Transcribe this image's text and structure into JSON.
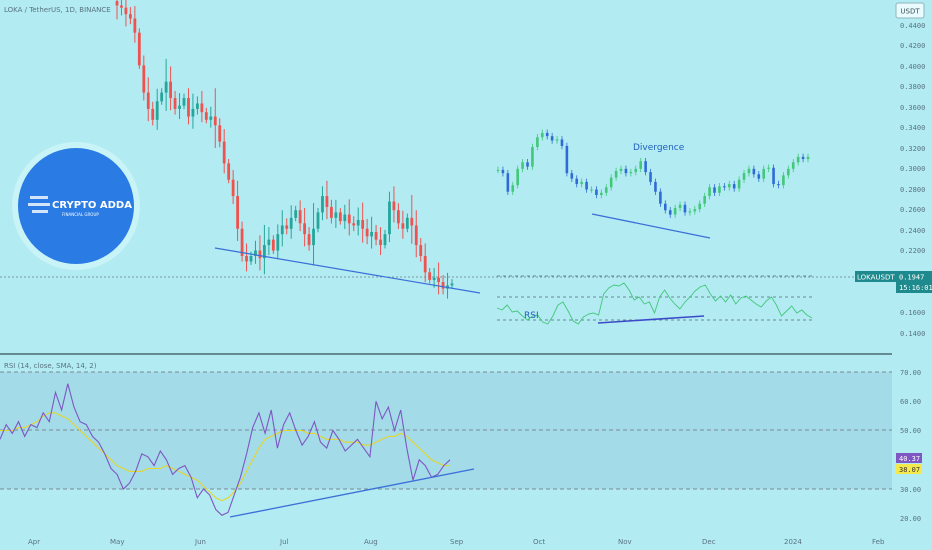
{
  "header": {
    "symbol_info": "LOKA / TetherUS, 1D, BINANCE",
    "currency_button": "USDT"
  },
  "price_axis": {
    "ticks": [
      "0.4400",
      "0.4200",
      "0.4000",
      "0.3800",
      "0.3600",
      "0.3400",
      "0.3200",
      "0.3000",
      "0.2800",
      "0.2600",
      "0.2400",
      "0.2200",
      "0.1600",
      "0.1400"
    ],
    "last_label": "LOKAUSDT",
    "last_price": "0.1947",
    "countdown": "15:16:01"
  },
  "rsi_axis": {
    "ticks": [
      "70.00",
      "60.00",
      "50.00",
      "30.00",
      "20.00"
    ],
    "rsi_value": "40.37",
    "ma_value": "38.07"
  },
  "rsi_pane": {
    "legend": "RSI (14, close, SMA, 14, 2)"
  },
  "time_axis": {
    "labels": [
      "Apr",
      "May",
      "Jun",
      "Jul",
      "Aug",
      "Sep",
      "Oct",
      "Nov",
      "Dec",
      "2024",
      "Feb"
    ]
  },
  "annotations": {
    "divergence": "Divergence",
    "rsi": "RSI",
    "logo_text": "CRYPTO ADDA",
    "logo_sub": "FINANCIAL GROUP"
  },
  "colors": {
    "background": "#b2ebf2",
    "up": "#26a69a",
    "down": "#ef5350",
    "rsi_line": "#7e57c2",
    "rsi_ma": "#e6d52a",
    "trendline": "#3b6fd8",
    "inset_green": "#43c77a",
    "inset_blue": "#2f6bd6",
    "logo_blue": "#2a7be4"
  },
  "chart_data": [
    {
      "type": "candlestick",
      "title": "LOKA / TetherUS, 1D, BINANCE",
      "ylim": [
        0.13,
        0.455
      ],
      "x_labels": [
        "Apr",
        "May",
        "Jun",
        "Jul",
        "Aug",
        "Sep"
      ],
      "close_series": [
        0.45,
        0.448,
        0.442,
        0.438,
        0.425,
        0.395,
        0.37,
        0.355,
        0.345,
        0.362,
        0.37,
        0.38,
        0.365,
        0.355,
        0.358,
        0.365,
        0.348,
        0.355,
        0.36,
        0.352,
        0.345,
        0.348,
        0.34,
        0.325,
        0.305,
        0.29,
        0.275,
        0.245,
        0.22,
        0.215,
        0.22,
        0.225,
        0.218,
        0.23,
        0.235,
        0.225,
        0.24,
        0.248,
        0.245,
        0.255,
        0.262,
        0.25,
        0.24,
        0.23,
        0.245,
        0.26,
        0.275,
        0.265,
        0.255,
        0.26,
        0.252,
        0.258,
        0.25,
        0.248,
        0.253,
        0.245,
        0.238,
        0.242,
        0.235,
        0.23,
        0.24,
        0.27,
        0.262,
        0.25,
        0.245,
        0.255,
        0.248,
        0.23,
        0.22,
        0.205,
        0.198,
        0.2,
        0.196,
        0.19,
        0.193,
        0.1947
      ],
      "last_price": 0.1947
    },
    {
      "type": "line",
      "title": "RSI (14, close, SMA, 14, 2)",
      "ylim": [
        18,
        72
      ],
      "guides": [
        70,
        50,
        30
      ],
      "series": [
        {
          "name": "RSI",
          "values": [
            47,
            52,
            49,
            53,
            48,
            52,
            51,
            56,
            53,
            63,
            57,
            66,
            58,
            53,
            52,
            48,
            46,
            42,
            37,
            35,
            30,
            32,
            36,
            42,
            41,
            38,
            43,
            40,
            35,
            37,
            38,
            34,
            27,
            30,
            28,
            23,
            21,
            22,
            28,
            34,
            42,
            51,
            56,
            49,
            57,
            44,
            52,
            56,
            50,
            45,
            48,
            53,
            46,
            44,
            50,
            47,
            43,
            45,
            47,
            44,
            41,
            60,
            54,
            58,
            50,
            57,
            44,
            33,
            40,
            38,
            34,
            35,
            38,
            40
          ]
        },
        {
          "name": "SMA",
          "values": [
            50,
            50,
            50,
            51,
            51,
            52,
            53,
            55,
            56,
            56,
            55,
            54,
            52,
            50,
            48,
            46,
            44,
            42,
            40,
            38,
            37,
            36,
            36,
            36,
            37,
            37,
            37,
            38,
            37,
            36,
            35,
            34,
            33,
            31,
            29,
            27,
            26,
            27,
            29,
            32,
            36,
            40,
            44,
            47,
            48,
            49,
            50,
            50,
            50,
            50,
            49,
            49,
            48,
            47,
            47,
            47,
            46,
            46,
            46,
            45,
            45,
            46,
            47,
            48,
            48,
            49,
            48,
            46,
            44,
            42,
            40,
            39,
            38,
            38
          ]
        }
      ]
    }
  ]
}
